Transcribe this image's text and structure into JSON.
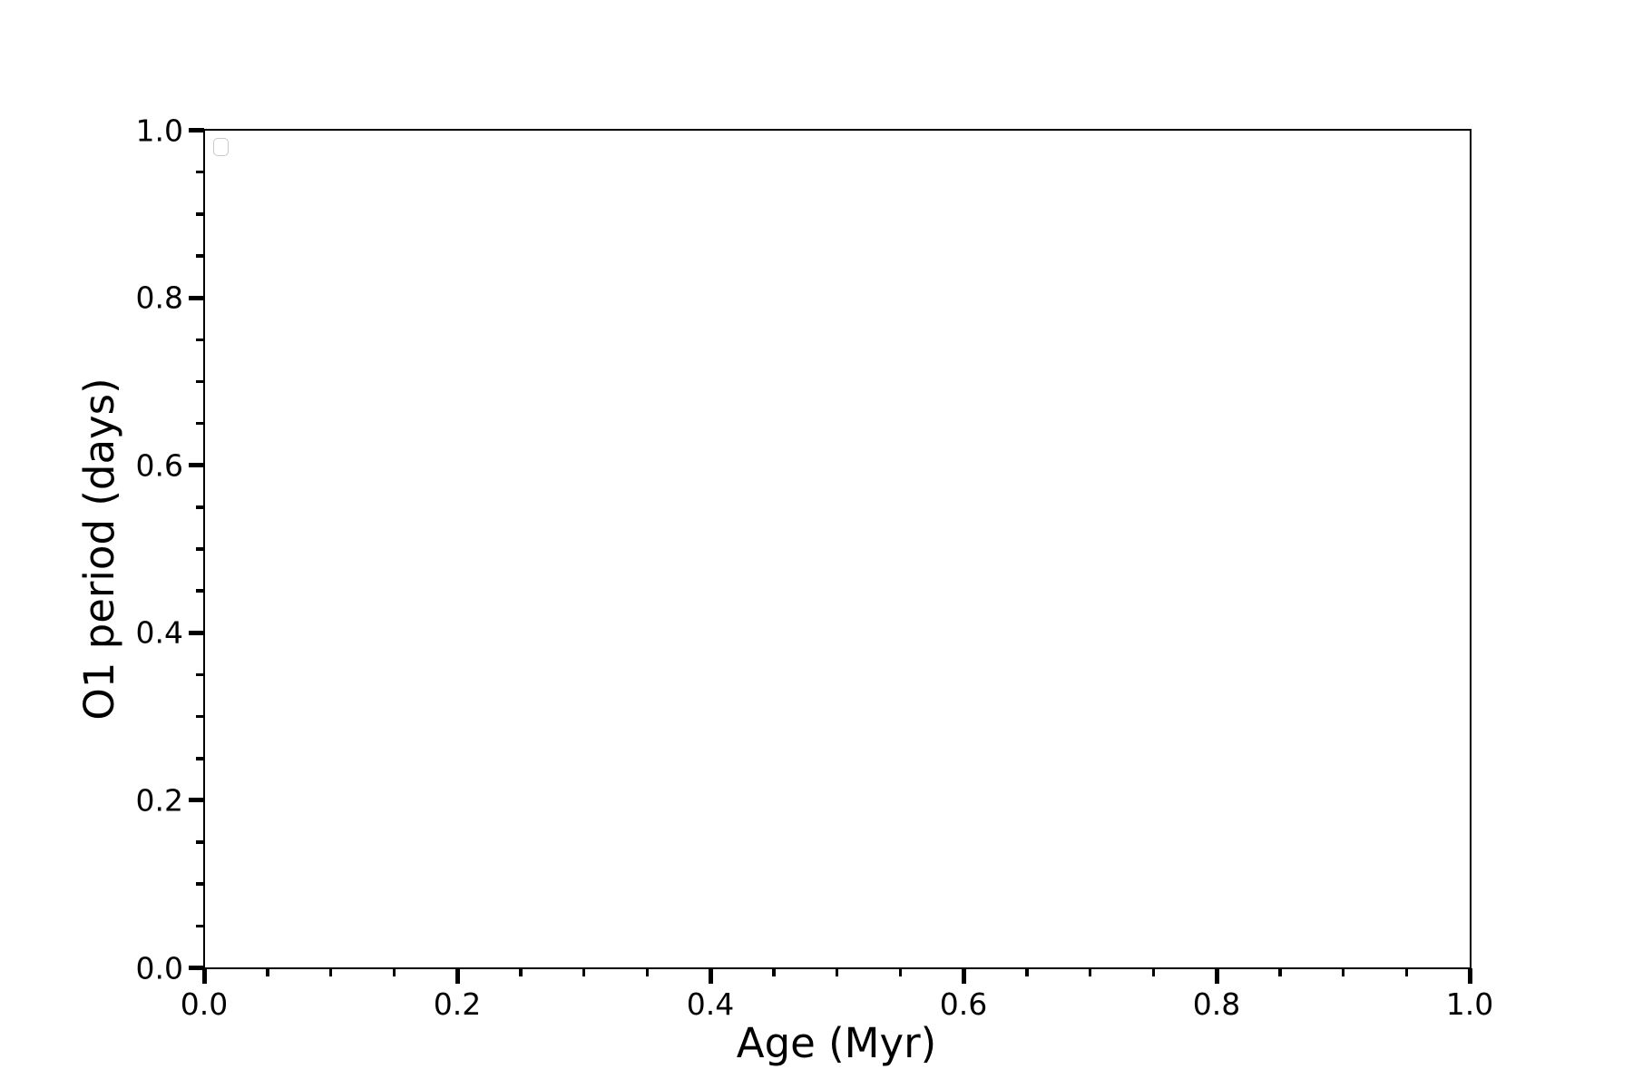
{
  "figure": {
    "background_color": "#ffffff",
    "axis_color": "#000000",
    "legend": {
      "visible": true,
      "entries": [],
      "position": "upper left",
      "border_color": "#c9c9c9"
    }
  },
  "chart_data": {
    "type": "scatter",
    "title": "",
    "xlabel": "Age (Myr)",
    "ylabel": "O1 period (days)",
    "xlim": [
      0.0,
      1.0
    ],
    "ylim": [
      0.0,
      1.0
    ],
    "x_major_ticks": [
      0.0,
      0.2,
      0.4,
      0.6,
      0.8,
      1.0
    ],
    "x_tick_labels": [
      "0.0",
      "0.2",
      "0.4",
      "0.6",
      "0.8",
      "1.0"
    ],
    "y_major_ticks": [
      0.0,
      0.2,
      0.4,
      0.6,
      0.8,
      1.0
    ],
    "y_tick_labels": [
      "0.0",
      "0.2",
      "0.4",
      "0.6",
      "0.8",
      "1.0"
    ],
    "minor_tick_interval": 0.05,
    "grid": false,
    "series": [],
    "legend_entries": []
  }
}
